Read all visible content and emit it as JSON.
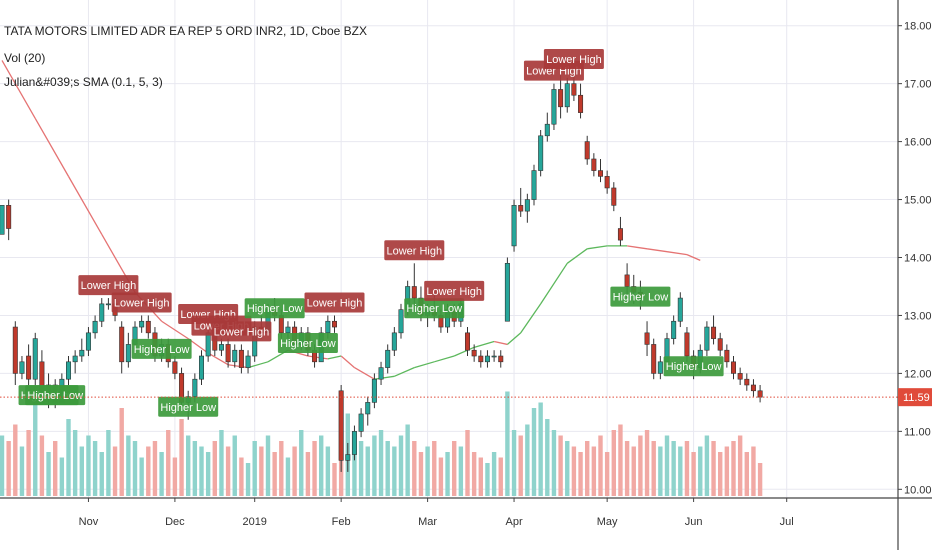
{
  "legend": {
    "title": "TATA MOTORS LIMITED ADR EA REP 5 ORD INR2, 1D, Cboe BZX",
    "volume": "Vol (20)",
    "indicator": "Julian&#039;s SMA (0.1, 5, 3)"
  },
  "colors": {
    "up": "#26a69a",
    "down": "#c0392b",
    "up_vol": "#8fd3cc",
    "down_vol": "#f1a9a4",
    "sma_up": "#5cb85c",
    "sma_down": "#e57373",
    "higher_low": "#3c9a3c",
    "lower_high": "#a83a3a",
    "last_price": "#e04b3a",
    "grid": "#e8e8f0"
  },
  "chart_data": {
    "type": "candlestick",
    "symbol": "TTM",
    "timeframe": "1D",
    "ylim": [
      9.85,
      18.15
    ],
    "y_ticks": [
      "10.00",
      "11.00",
      "12.00",
      "13.00",
      "14.00",
      "15.00",
      "16.00",
      "17.00",
      "18.00"
    ],
    "x_ticks": [
      {
        "i": 13,
        "label": "Nov"
      },
      {
        "i": 26,
        "label": "Dec"
      },
      {
        "i": 38,
        "label": "2019"
      },
      {
        "i": 51,
        "label": "Feb"
      },
      {
        "i": 64,
        "label": "Mar"
      },
      {
        "i": 77,
        "label": "Apr"
      },
      {
        "i": 91,
        "label": "May"
      },
      {
        "i": 104,
        "label": "Jun"
      },
      {
        "i": 118,
        "label": "Jul"
      }
    ],
    "last_price": "11.59",
    "last_price_value": 11.59,
    "candles_ohlc": [
      [
        14.4,
        14.6,
        14.4,
        14.9
      ],
      [
        14.9,
        15.0,
        14.3,
        14.5
      ],
      [
        12.8,
        12.9,
        11.8,
        12.0
      ],
      [
        12.0,
        12.3,
        11.9,
        12.2
      ],
      [
        12.3,
        12.5,
        11.8,
        11.9
      ],
      [
        11.9,
        12.7,
        11.8,
        12.6
      ],
      [
        12.2,
        12.4,
        11.5,
        11.7
      ],
      [
        11.7,
        12.0,
        11.4,
        11.8
      ],
      [
        11.8,
        11.9,
        11.4,
        11.5
      ],
      [
        11.5,
        12.0,
        11.5,
        11.9
      ],
      [
        11.9,
        12.3,
        11.8,
        12.2
      ],
      [
        12.2,
        12.4,
        12.0,
        12.3
      ],
      [
        12.3,
        12.6,
        12.2,
        12.4
      ],
      [
        12.4,
        12.8,
        12.3,
        12.7
      ],
      [
        12.7,
        13.0,
        12.6,
        12.9
      ],
      [
        12.9,
        13.3,
        12.8,
        13.2
      ],
      [
        13.2,
        13.3,
        13.1,
        13.2
      ],
      [
        13.2,
        13.3,
        12.9,
        13.0
      ],
      [
        12.8,
        12.9,
        12.0,
        12.2
      ],
      [
        12.2,
        12.7,
        12.1,
        12.5
      ],
      [
        12.5,
        12.9,
        12.4,
        12.8
      ],
      [
        12.8,
        13.0,
        12.7,
        12.9
      ],
      [
        12.9,
        13.0,
        12.6,
        12.7
      ],
      [
        12.7,
        12.8,
        12.2,
        12.3
      ],
      [
        12.3,
        12.6,
        12.2,
        12.5
      ],
      [
        12.5,
        12.6,
        12.1,
        12.2
      ],
      [
        12.2,
        12.3,
        11.9,
        12.0
      ],
      [
        12.0,
        12.1,
        11.4,
        11.5
      ],
      [
        11.5,
        11.7,
        11.2,
        11.6
      ],
      [
        11.6,
        12.0,
        11.5,
        11.9
      ],
      [
        11.9,
        12.4,
        11.8,
        12.3
      ],
      [
        12.3,
        12.8,
        12.2,
        12.7
      ],
      [
        12.7,
        12.8,
        12.3,
        12.4
      ],
      [
        12.4,
        12.6,
        12.3,
        12.5
      ],
      [
        12.5,
        12.6,
        12.1,
        12.2
      ],
      [
        12.2,
        12.5,
        12.1,
        12.4
      ],
      [
        12.4,
        12.5,
        12.0,
        12.1
      ],
      [
        12.1,
        12.4,
        12.0,
        12.3
      ],
      [
        12.3,
        12.9,
        12.2,
        12.8
      ],
      [
        12.8,
        13.0,
        12.6,
        12.7
      ],
      [
        12.7,
        13.2,
        12.7,
        13.1
      ],
      [
        13.1,
        13.3,
        12.9,
        13.0
      ],
      [
        13.0,
        13.1,
        12.6,
        12.7
      ],
      [
        12.7,
        12.9,
        12.6,
        12.8
      ],
      [
        12.8,
        12.9,
        12.4,
        12.5
      ],
      [
        12.5,
        12.8,
        12.4,
        12.7
      ],
      [
        12.7,
        12.8,
        12.3,
        12.4
      ],
      [
        12.4,
        12.5,
        12.1,
        12.2
      ],
      [
        12.2,
        12.8,
        12.2,
        12.7
      ],
      [
        12.7,
        13.0,
        12.6,
        12.9
      ],
      [
        12.9,
        13.0,
        12.7,
        12.8
      ],
      [
        11.7,
        11.8,
        10.3,
        10.5
      ],
      [
        10.5,
        10.8,
        10.3,
        10.6
      ],
      [
        10.6,
        11.1,
        10.5,
        11.0
      ],
      [
        11.0,
        11.4,
        10.9,
        11.3
      ],
      [
        11.3,
        11.6,
        11.1,
        11.5
      ],
      [
        11.5,
        12.0,
        11.4,
        11.9
      ],
      [
        11.9,
        12.2,
        11.8,
        12.1
      ],
      [
        12.1,
        12.5,
        12.0,
        12.4
      ],
      [
        12.4,
        12.8,
        12.3,
        12.7
      ],
      [
        12.7,
        13.2,
        12.6,
        13.1
      ],
      [
        13.1,
        13.6,
        13.0,
        13.5
      ],
      [
        13.5,
        13.9,
        13.2,
        13.3
      ],
      [
        13.3,
        13.5,
        12.9,
        13.0
      ],
      [
        13.0,
        13.2,
        12.8,
        13.1
      ],
      [
        13.1,
        13.4,
        12.9,
        13.0
      ],
      [
        13.0,
        13.1,
        12.7,
        12.8
      ],
      [
        12.8,
        13.2,
        12.7,
        13.1
      ],
      [
        13.1,
        13.2,
        12.8,
        12.9
      ],
      [
        12.9,
        13.3,
        12.8,
        13.2
      ],
      [
        12.7,
        12.8,
        12.3,
        12.4
      ],
      [
        12.4,
        12.5,
        12.2,
        12.3
      ],
      [
        12.3,
        12.4,
        12.1,
        12.2
      ],
      [
        12.2,
        12.4,
        12.1,
        12.3
      ],
      [
        12.3,
        12.4,
        12.2,
        12.3
      ],
      [
        12.3,
        12.4,
        12.1,
        12.2
      ],
      [
        12.9,
        14.0,
        12.9,
        13.9
      ],
      [
        14.2,
        15.0,
        14.1,
        14.9
      ],
      [
        14.9,
        15.2,
        14.7,
        14.8
      ],
      [
        14.8,
        15.1,
        14.6,
        15.0
      ],
      [
        15.0,
        15.6,
        14.9,
        15.5
      ],
      [
        15.5,
        16.2,
        15.4,
        16.1
      ],
      [
        16.1,
        16.5,
        16.0,
        16.3
      ],
      [
        16.3,
        17.0,
        16.2,
        16.9
      ],
      [
        16.9,
        17.2,
        16.4,
        16.6
      ],
      [
        16.6,
        17.1,
        16.5,
        17.0
      ],
      [
        17.0,
        17.2,
        16.7,
        16.8
      ],
      [
        16.8,
        17.0,
        16.4,
        16.5
      ],
      [
        16.0,
        16.1,
        15.6,
        15.7
      ],
      [
        15.7,
        15.8,
        15.4,
        15.5
      ],
      [
        15.5,
        15.7,
        15.3,
        15.4
      ],
      [
        15.4,
        15.5,
        15.1,
        15.2
      ],
      [
        15.2,
        15.3,
        14.8,
        14.9
      ],
      [
        14.5,
        14.7,
        14.2,
        14.3
      ],
      [
        13.7,
        13.9,
        13.3,
        13.5
      ],
      [
        13.5,
        13.7,
        13.2,
        13.4
      ],
      [
        13.4,
        13.6,
        13.1,
        13.3
      ],
      [
        12.7,
        12.9,
        12.3,
        12.5
      ],
      [
        12.5,
        12.6,
        11.9,
        12.0
      ],
      [
        12.0,
        12.3,
        11.9,
        12.2
      ],
      [
        12.2,
        12.7,
        12.1,
        12.6
      ],
      [
        12.6,
        13.0,
        12.5,
        12.9
      ],
      [
        12.9,
        13.4,
        12.8,
        13.3
      ],
      [
        12.7,
        12.8,
        12.2,
        12.3
      ],
      [
        12.3,
        12.4,
        11.9,
        12.1
      ],
      [
        12.1,
        12.5,
        12.0,
        12.4
      ],
      [
        12.4,
        12.9,
        12.3,
        12.8
      ],
      [
        12.8,
        13.0,
        12.5,
        12.6
      ],
      [
        12.6,
        12.7,
        12.3,
        12.4
      ],
      [
        12.4,
        12.5,
        12.1,
        12.2
      ],
      [
        12.2,
        12.3,
        11.9,
        12.0
      ],
      [
        12.0,
        12.1,
        11.8,
        11.9
      ],
      [
        11.9,
        12.0,
        11.7,
        11.8
      ],
      [
        11.8,
        11.9,
        11.6,
        11.7
      ],
      [
        11.7,
        11.8,
        11.5,
        11.59
      ]
    ],
    "volume_relative": [
      0.55,
      0.5,
      0.65,
      0.45,
      0.6,
      0.9,
      0.55,
      0.4,
      0.5,
      0.35,
      0.7,
      0.6,
      0.45,
      0.55,
      0.5,
      0.4,
      0.6,
      0.45,
      0.8,
      0.55,
      0.5,
      0.35,
      0.45,
      0.5,
      0.4,
      0.6,
      0.35,
      0.7,
      0.55,
      0.5,
      0.45,
      0.4,
      0.5,
      0.6,
      0.45,
      0.55,
      0.35,
      0.3,
      0.5,
      0.45,
      0.55,
      0.4,
      0.5,
      0.35,
      0.45,
      0.6,
      0.4,
      0.5,
      0.55,
      0.45,
      0.3,
      0.9,
      0.75,
      0.4,
      0.5,
      0.45,
      0.55,
      0.6,
      0.5,
      0.45,
      0.55,
      0.65,
      0.5,
      0.4,
      0.45,
      0.5,
      0.35,
      0.4,
      0.5,
      0.45,
      0.6,
      0.4,
      0.35,
      0.3,
      0.4,
      0.35,
      0.95,
      0.6,
      0.55,
      0.65,
      0.8,
      0.85,
      0.7,
      0.6,
      0.55,
      0.5,
      0.45,
      0.4,
      0.5,
      0.45,
      0.55,
      0.4,
      0.6,
      0.65,
      0.5,
      0.45,
      0.55,
      0.6,
      0.5,
      0.45,
      0.55,
      0.5,
      0.45,
      0.5,
      0.4,
      0.45,
      0.55,
      0.5,
      0.4,
      0.45,
      0.5,
      0.55,
      0.4,
      0.45,
      0.3
    ],
    "sma_line": [
      [
        0,
        17.4
      ],
      [
        5,
        16.4
      ],
      [
        10,
        15.4
      ],
      [
        15,
        14.4
      ],
      [
        20,
        13.4
      ],
      [
        24,
        12.9
      ],
      [
        28,
        12.6
      ],
      [
        31,
        12.35
      ],
      [
        34,
        12.15
      ],
      [
        37,
        12.1
      ],
      [
        40,
        12.2
      ],
      [
        43,
        12.4
      ],
      [
        46,
        12.3
      ],
      [
        49,
        12.25
      ],
      [
        51,
        12.3
      ],
      [
        53,
        12.1
      ],
      [
        56,
        11.9
      ],
      [
        59,
        11.95
      ],
      [
        62,
        12.1
      ],
      [
        65,
        12.2
      ],
      [
        68,
        12.3
      ],
      [
        71,
        12.45
      ],
      [
        74,
        12.55
      ],
      [
        76,
        12.5
      ],
      [
        78,
        12.7
      ],
      [
        81,
        13.2
      ],
      [
        85,
        13.9
      ],
      [
        88,
        14.15
      ],
      [
        91,
        14.2
      ],
      [
        94,
        14.2
      ],
      [
        97,
        14.15
      ],
      [
        100,
        14.1
      ],
      [
        103,
        14.05
      ],
      [
        105,
        13.95
      ]
    ],
    "signals": [
      {
        "i": 7,
        "type": "higher_low",
        "label": "Higher Low"
      },
      {
        "i": 8,
        "type": "higher_low",
        "label": "Higher Low"
      },
      {
        "i": 16,
        "type": "lower_high",
        "label": "Lower High"
      },
      {
        "i": 21,
        "type": "lower_high",
        "label": "Lower High"
      },
      {
        "i": 24,
        "type": "higher_low",
        "label": "Higher Low"
      },
      {
        "i": 28,
        "type": "higher_low",
        "label": "Higher Low"
      },
      {
        "i": 31,
        "type": "lower_high",
        "label": "Lower High"
      },
      {
        "i": 33,
        "type": "lower_high",
        "label": "Lower High"
      },
      {
        "i": 36,
        "type": "lower_high",
        "label": "Lower High"
      },
      {
        "i": 41,
        "type": "higher_low",
        "label": "Higher Low"
      },
      {
        "i": 46,
        "type": "higher_low",
        "label": "Higher Low"
      },
      {
        "i": 50,
        "type": "lower_high",
        "label": "Lower High"
      },
      {
        "i": 62,
        "type": "lower_high",
        "label": "Lower High"
      },
      {
        "i": 65,
        "type": "higher_low",
        "label": "Higher Low"
      },
      {
        "i": 68,
        "type": "lower_high",
        "label": "Lower High"
      },
      {
        "i": 83,
        "type": "lower_high",
        "label": "Lower High"
      },
      {
        "i": 86,
        "type": "lower_high",
        "label": "Lower High"
      },
      {
        "i": 96,
        "type": "higher_low",
        "label": "Higher Low"
      },
      {
        "i": 104,
        "type": "higher_low",
        "label": "Higher Low"
      }
    ]
  }
}
